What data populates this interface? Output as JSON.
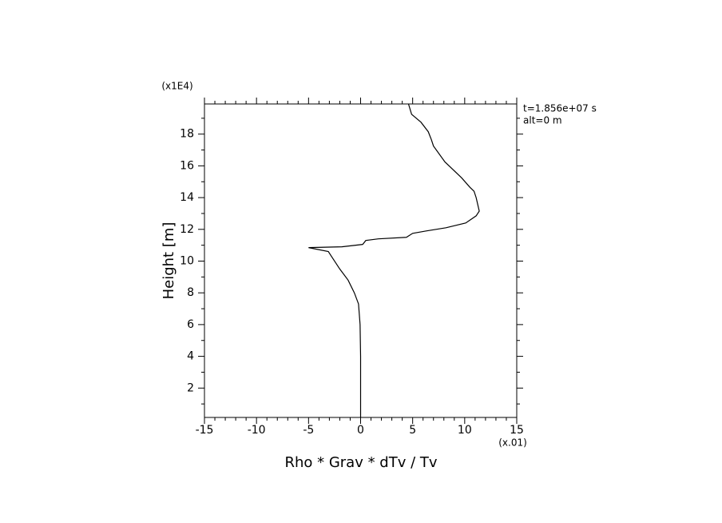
{
  "chart_data": {
    "type": "line",
    "x_label": "Rho * Grav * dTv / Tv",
    "y_label": "Height [m]",
    "x_scale_note": "(x.01)",
    "y_scale_note": "(x1E4)",
    "annotations": [
      "t=1.856e+07 s",
      "alt=0 m"
    ],
    "x": [
      0,
      0,
      -0.05,
      -0.2,
      -0.6,
      -1.2,
      -2,
      -2.8,
      -3.1,
      -5,
      -1.8,
      0.2,
      0.5,
      1.7,
      4.4,
      5,
      6.3,
      8.2,
      10.1,
      11.1,
      11.4,
      11.1,
      10.9,
      10.5,
      9.7,
      8.1,
      7,
      6.8,
      6.5,
      5.8,
      4.9,
      4.6
    ],
    "series": [
      {
        "color": "#000000",
        "values": [
          0.15,
          4,
          6,
          7.3,
          8,
          8.8,
          9.5,
          10.3,
          10.6,
          10.85,
          10.9,
          11.05,
          11.3,
          11.4,
          11.5,
          11.75,
          11.9,
          12.1,
          12.4,
          12.85,
          13.15,
          14.0,
          14.4,
          14.65,
          15.25,
          16.25,
          17.25,
          17.65,
          18.15,
          18.75,
          19.25,
          19.9
        ]
      }
    ],
    "xlim": [
      -15,
      15
    ],
    "ylim": [
      0.15,
      19.9
    ],
    "xticks": [
      -15,
      -10,
      -5,
      0,
      5,
      10,
      15
    ],
    "yticks": [
      2,
      4,
      6,
      8,
      10,
      12,
      14,
      16,
      18
    ],
    "xticks_minor": [
      -14,
      -13,
      -12,
      -11,
      -9,
      -8,
      -7,
      -6,
      -4,
      -3,
      -2,
      -1,
      1,
      2,
      3,
      4,
      6,
      7,
      8,
      9,
      11,
      12,
      13,
      14
    ],
    "yticks_minor": [
      1,
      3,
      5,
      7,
      9,
      11,
      13,
      15,
      17,
      19
    ]
  }
}
